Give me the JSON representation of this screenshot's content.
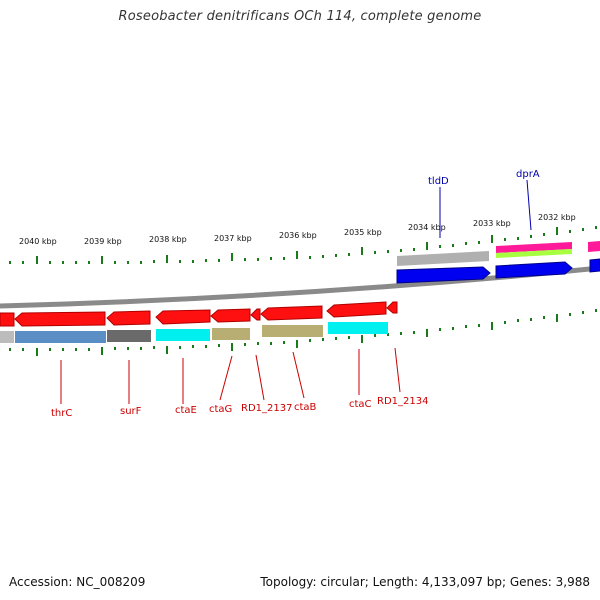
{
  "title": "Roseobacter denitrificans OCh 114, complete genome",
  "footer": {
    "accession": "Accession: NC_008209",
    "summary": "Topology: circular; Length: 4,133,097 bp; Genes: 3,988"
  },
  "kbp_labels": [
    "2040 kbp",
    "2039 kbp",
    "2038 kbp",
    "2037 kbp",
    "2036 kbp",
    "2035 kbp",
    "2034 kbp",
    "2033 kbp",
    "2032 kbp"
  ],
  "gene_labels_bottom": [
    "thrC",
    "surF",
    "ctaE",
    "ctaG",
    "RD1_2137",
    "ctaB",
    "ctaC",
    "RD1_2134"
  ],
  "gene_labels_top": [
    "tldD",
    "dprA"
  ],
  "colors": {
    "forward_strand_gene": "#ff0000",
    "reverse_strand_gene": "#0000e0",
    "label_bottom": "#cc0000",
    "label_top": "#0000aa",
    "tick": "#1a7a1a",
    "backbone": "#888888"
  }
}
